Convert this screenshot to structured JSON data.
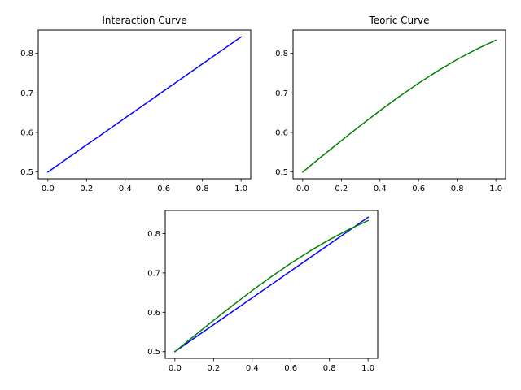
{
  "chart_data": [
    {
      "type": "line",
      "title": "Interaction Curve",
      "xlabel": "",
      "ylabel": "",
      "xlim": [
        -0.05,
        1.05
      ],
      "ylim": [
        0.4829,
        0.8588
      ],
      "xticks": [
        "0.0",
        "0.2",
        "0.4",
        "0.6",
        "0.8",
        "1.0"
      ],
      "yticks": [
        "0.5",
        "0.6",
        "0.7",
        "0.8"
      ],
      "grid": false,
      "series": [
        {
          "color": "#0000ff",
          "x": [
            0.0,
            0.1,
            0.2,
            0.3,
            0.4,
            0.5,
            0.6,
            0.7,
            0.8,
            0.9,
            1.0
          ],
          "y": [
            0.5,
            0.5342,
            0.5683,
            0.6024,
            0.6366,
            0.6707,
            0.7049,
            0.739,
            0.7732,
            0.8073,
            0.8415
          ]
        }
      ]
    },
    {
      "type": "line",
      "title": "Teoric Curve",
      "xlabel": "",
      "ylabel": "",
      "xlim": [
        -0.05,
        1.05
      ],
      "ylim": [
        0.4829,
        0.8588
      ],
      "xticks": [
        "0.0",
        "0.2",
        "0.4",
        "0.6",
        "0.8",
        "1.0"
      ],
      "yticks": [
        "0.5",
        "0.6",
        "0.7",
        "0.8"
      ],
      "grid": false,
      "series": [
        {
          "color": "#008000",
          "x": [
            0.0,
            0.1,
            0.2,
            0.3,
            0.4,
            0.5,
            0.6,
            0.7,
            0.8,
            0.9,
            1.0
          ],
          "y": [
            0.5,
            0.5399,
            0.5793,
            0.6178,
            0.6552,
            0.6908,
            0.7245,
            0.7559,
            0.7846,
            0.8104,
            0.8331
          ]
        }
      ]
    },
    {
      "type": "line",
      "title": "",
      "xlabel": "",
      "ylabel": "",
      "xlim": [
        -0.05,
        1.05
      ],
      "ylim": [
        0.4829,
        0.8588
      ],
      "xticks": [
        "0.0",
        "0.2",
        "0.4",
        "0.6",
        "0.8",
        "1.0"
      ],
      "yticks": [
        "0.5",
        "0.6",
        "0.7",
        "0.8"
      ],
      "grid": false,
      "series": [
        {
          "color": "#0000ff",
          "x": [
            0.0,
            0.1,
            0.2,
            0.3,
            0.4,
            0.5,
            0.6,
            0.7,
            0.8,
            0.9,
            1.0
          ],
          "y": [
            0.5,
            0.5342,
            0.5683,
            0.6024,
            0.6366,
            0.6707,
            0.7049,
            0.739,
            0.7732,
            0.8073,
            0.8415
          ]
        },
        {
          "color": "#008000",
          "x": [
            0.0,
            0.1,
            0.2,
            0.3,
            0.4,
            0.5,
            0.6,
            0.7,
            0.8,
            0.9,
            1.0
          ],
          "y": [
            0.5,
            0.5399,
            0.5793,
            0.6178,
            0.6552,
            0.6908,
            0.7245,
            0.7559,
            0.7846,
            0.8104,
            0.8331
          ]
        }
      ]
    }
  ]
}
